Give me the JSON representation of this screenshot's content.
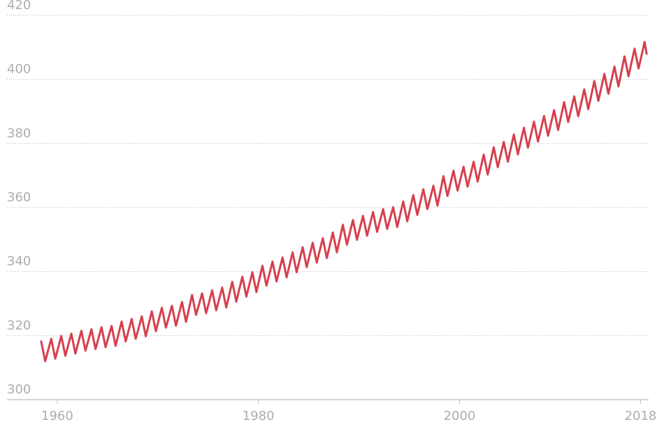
{
  "chart_data": {
    "type": "line",
    "x": [
      1958.4,
      1958.8,
      1959.4,
      1959.8,
      1960.4,
      1960.8,
      1961.4,
      1961.8,
      1962.4,
      1962.8,
      1963.4,
      1963.8,
      1964.4,
      1964.8,
      1965.4,
      1965.8,
      1966.4,
      1966.8,
      1967.4,
      1967.8,
      1968.4,
      1968.8,
      1969.4,
      1969.8,
      1970.4,
      1970.8,
      1971.4,
      1971.8,
      1972.4,
      1972.8,
      1973.4,
      1973.8,
      1974.4,
      1974.8,
      1975.4,
      1975.8,
      1976.4,
      1976.8,
      1977.4,
      1977.8,
      1978.4,
      1978.8,
      1979.4,
      1979.8,
      1980.4,
      1980.8,
      1981.4,
      1981.8,
      1982.4,
      1982.8,
      1983.4,
      1983.8,
      1984.4,
      1984.8,
      1985.4,
      1985.8,
      1986.4,
      1986.8,
      1987.4,
      1987.8,
      1988.4,
      1988.8,
      1989.4,
      1989.8,
      1990.4,
      1990.8,
      1991.4,
      1991.8,
      1992.4,
      1992.8,
      1993.4,
      1993.8,
      1994.4,
      1994.8,
      1995.4,
      1995.8,
      1996.4,
      1996.8,
      1997.4,
      1997.8,
      1998.4,
      1998.8,
      1999.4,
      1999.8,
      2000.4,
      2000.8,
      2001.4,
      2001.8,
      2002.4,
      2002.8,
      2003.4,
      2003.8,
      2004.4,
      2004.8,
      2005.4,
      2005.8,
      2006.4,
      2006.8,
      2007.4,
      2007.8,
      2008.4,
      2008.8,
      2009.4,
      2009.8,
      2010.4,
      2010.8,
      2011.4,
      2011.8,
      2012.4,
      2012.8,
      2013.4,
      2013.8,
      2014.4,
      2014.8,
      2015.4,
      2015.8,
      2016.4,
      2016.8,
      2017.4,
      2017.8,
      2018.4,
      2018.6
    ],
    "series": [
      {
        "color": "#d6404e",
        "values": [
          318.2,
          312.0,
          319.0,
          312.8,
          319.9,
          313.7,
          320.6,
          314.4,
          321.5,
          315.3,
          322.0,
          315.8,
          322.6,
          316.4,
          323.0,
          316.8,
          324.4,
          318.2,
          325.2,
          319.0,
          326.0,
          319.8,
          327.6,
          321.4,
          328.7,
          322.5,
          329.3,
          323.1,
          330.5,
          324.3,
          332.7,
          326.5,
          333.2,
          327.0,
          334.1,
          327.9,
          335.0,
          328.8,
          336.8,
          330.6,
          338.4,
          332.2,
          339.8,
          333.6,
          341.8,
          335.6,
          343.1,
          336.9,
          344.4,
          338.2,
          346.0,
          339.8,
          347.6,
          341.4,
          349.0,
          342.8,
          350.4,
          344.2,
          352.2,
          346.0,
          354.6,
          348.4,
          356.1,
          349.9,
          357.4,
          351.2,
          358.6,
          352.4,
          359.5,
          353.3,
          360.1,
          353.9,
          361.9,
          355.7,
          363.9,
          357.7,
          365.7,
          359.5,
          366.8,
          360.6,
          369.8,
          363.6,
          371.5,
          365.3,
          372.7,
          366.5,
          374.3,
          368.1,
          376.5,
          370.3,
          378.8,
          372.6,
          380.5,
          374.3,
          382.8,
          376.6,
          384.9,
          378.7,
          386.8,
          380.6,
          388.6,
          382.4,
          390.4,
          384.2,
          392.9,
          386.7,
          394.7,
          388.5,
          396.9,
          390.7,
          399.5,
          393.3,
          401.7,
          395.5,
          404.0,
          397.8,
          407.2,
          401.0,
          409.6,
          403.4,
          411.7,
          408.0
        ]
      }
    ],
    "xlim": [
      1955,
      2018.8
    ],
    "xticks": [
      1960,
      1980,
      2000,
      2018
    ],
    "ylim": [
      300,
      420
    ],
    "yticks": [
      300,
      320,
      340,
      360,
      380,
      400,
      420
    ],
    "grid": true
  }
}
